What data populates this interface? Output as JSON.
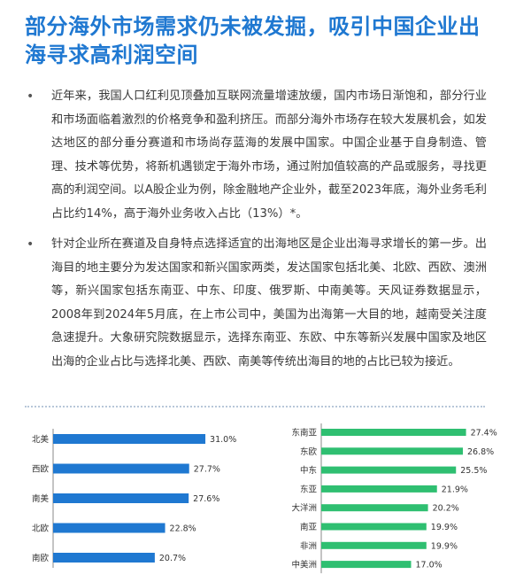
{
  "title": "部分海外市场需求仍未被发掘，吸引中国企业出海寻求高利润空间",
  "bullets": [
    "近年来，我国人口红利见顶叠加互联网流量增速放缓，国内市场日渐饱和，部分行业和市场面临着激烈的价格竞争和盈利挤压。而部分海外市场存在较大发展机会，如发达地区的部分垂分赛道和市场尚存蓝海的发展中国家。中国企业基于自身制造、管理、技术等优势，将新机遇锁定于海外市场，通过附加值较高的产品或服务，寻找更高的利润空间。以A股企业为例，除金融地产企业外，截至2023年底，海外业务毛利占比约14%，高于海外业务收入占比（13%）*。",
    "针对企业所在赛道及自身特点选择适宜的出海地区是企业出海寻求增长的第一步。出海目的地主要分为发达国家和新兴国家两类，发达国家包括北美、北欧、西欧、澳洲等，新兴国家包括东南亚、中东、印度、俄罗斯、中南美等。天风证券数据显示，2008年到2024年5月底，在上市公司中，美国为出海第一大目的地，越南受关注度急速提升。大象研究院数据显示，选择东南亚、东欧、中东等新兴发展中国家及地区出海的企业占比与选择北美、西欧、南美等传统出海目的地的占比已较为接近。"
  ],
  "chart_data": [
    {
      "type": "bar",
      "orientation": "horizontal",
      "categories": [
        "北美",
        "西欧",
        "南美",
        "北欧",
        "南欧"
      ],
      "values": [
        31.0,
        27.7,
        27.6,
        22.8,
        20.7
      ],
      "value_labels": [
        "31.0%",
        "27.7%",
        "27.6%",
        "22.8%",
        "20.7%"
      ],
      "color": "#1f78d1"
    },
    {
      "type": "bar",
      "orientation": "horizontal",
      "categories": [
        "东南亚",
        "东欧",
        "中东",
        "东亚",
        "大洋洲",
        "南亚",
        "非洲",
        "中美洲"
      ],
      "values": [
        27.4,
        26.8,
        25.5,
        21.9,
        20.2,
        19.9,
        19.9,
        17.0
      ],
      "value_labels": [
        "27.4%",
        "26.8%",
        "25.5%",
        "21.9%",
        "20.2%",
        "19.9%",
        "19.9%",
        "17.0%"
      ],
      "color": "#2fbf71"
    }
  ]
}
